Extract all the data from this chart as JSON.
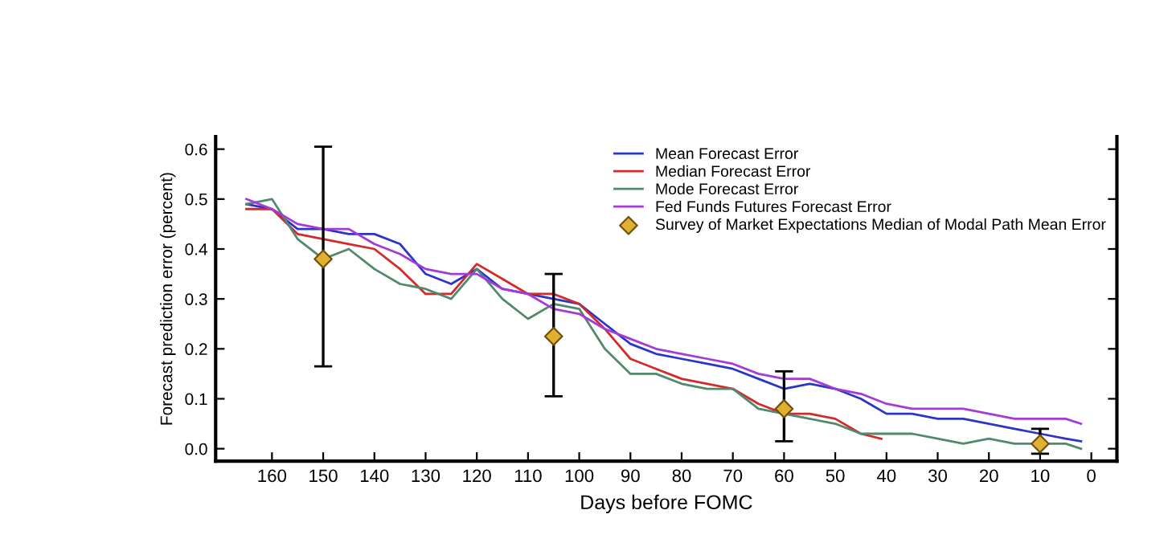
{
  "chart_data": {
    "type": "line",
    "xlabel": "Days before FOMC",
    "ylabel": "Forecast prediction error (percent)",
    "xlim": [
      171,
      -5
    ],
    "xticks": [
      160,
      150,
      140,
      130,
      120,
      110,
      100,
      90,
      80,
      70,
      60,
      50,
      40,
      30,
      20,
      10,
      0
    ],
    "ylim": [
      -0.025,
      0.625
    ],
    "yticks": [
      {
        "value": 0,
        "label": "0.0"
      },
      0.1,
      0.2,
      0.3,
      0.4,
      0.5,
      0.6
    ],
    "legend": "top right",
    "grid": false,
    "line_style": "solid",
    "marker": "none",
    "series": [
      {
        "name": "Mean Forecast Error",
        "color": "#2b35c8",
        "x": [
          165,
          160,
          155,
          150,
          145,
          140,
          135,
          130,
          125,
          120,
          115,
          110,
          105,
          100,
          95,
          90,
          85,
          80,
          75,
          70,
          65,
          60,
          55,
          50,
          45,
          40,
          35,
          30,
          25,
          20,
          15,
          10,
          5,
          2
        ],
        "values": [
          0.49,
          0.48,
          0.44,
          0.44,
          0.43,
          0.43,
          0.41,
          0.35,
          0.33,
          0.36,
          0.32,
          0.31,
          0.3,
          0.29,
          0.25,
          0.21,
          0.19,
          0.18,
          0.17,
          0.16,
          0.14,
          0.12,
          0.13,
          0.12,
          0.1,
          0.07,
          0.07,
          0.06,
          0.06,
          0.05,
          0.04,
          0.03,
          0.02,
          0.015
        ]
      },
      {
        "name": "Median Forecast Error",
        "color": "#d42a2a",
        "x": [
          165,
          160,
          155,
          150,
          145,
          140,
          135,
          130,
          125,
          120,
          115,
          110,
          105,
          100,
          95,
          90,
          85,
          80,
          75,
          70,
          65,
          60,
          55,
          50,
          45,
          41
        ],
        "values": [
          0.48,
          0.48,
          0.43,
          0.42,
          0.41,
          0.4,
          0.36,
          0.31,
          0.31,
          0.37,
          0.34,
          0.31,
          0.31,
          0.29,
          0.24,
          0.18,
          0.16,
          0.14,
          0.13,
          0.12,
          0.09,
          0.07,
          0.07,
          0.06,
          0.03,
          0.02
        ]
      },
      {
        "name": "Mode Forecast Error",
        "color": "#4f8a6c",
        "x": [
          165,
          160,
          155,
          150,
          145,
          140,
          135,
          130,
          125,
          120,
          115,
          110,
          105,
          100,
          95,
          90,
          85,
          80,
          75,
          70,
          65,
          60,
          55,
          50,
          45,
          40,
          35,
          30,
          25,
          20,
          15,
          10,
          5,
          2
        ],
        "values": [
          0.49,
          0.5,
          0.42,
          0.38,
          0.4,
          0.36,
          0.33,
          0.32,
          0.3,
          0.36,
          0.3,
          0.26,
          0.29,
          0.28,
          0.2,
          0.15,
          0.15,
          0.13,
          0.12,
          0.12,
          0.08,
          0.07,
          0.06,
          0.05,
          0.03,
          0.03,
          0.03,
          0.02,
          0.01,
          0.02,
          0.01,
          0.01,
          0.01,
          0.0
        ]
      },
      {
        "name": "Fed Funds Futures Forecast Error",
        "color": "#a63ad6",
        "x": [
          165,
          160,
          155,
          150,
          145,
          140,
          135,
          130,
          125,
          120,
          115,
          110,
          105,
          100,
          95,
          90,
          85,
          80,
          75,
          70,
          65,
          60,
          55,
          50,
          45,
          40,
          35,
          30,
          25,
          20,
          15,
          10,
          5,
          2
        ],
        "values": [
          0.5,
          0.48,
          0.45,
          0.44,
          0.44,
          0.41,
          0.39,
          0.36,
          0.35,
          0.35,
          0.32,
          0.31,
          0.28,
          0.27,
          0.24,
          0.22,
          0.2,
          0.19,
          0.18,
          0.17,
          0.15,
          0.14,
          0.14,
          0.12,
          0.11,
          0.09,
          0.08,
          0.08,
          0.08,
          0.07,
          0.06,
          0.06,
          0.06,
          0.05
        ]
      },
      {
        "name": "Survey of Market Expectations Median of Modal Path Mean Error",
        "type": "scatter",
        "marker": "diamond",
        "color": "#e0b030",
        "x": [
          150,
          105,
          60,
          10
        ],
        "values": [
          0.38,
          0.225,
          0.08,
          0.01
        ],
        "errors": [
          [
            0.165,
            0.605
          ],
          [
            0.105,
            0.35
          ],
          [
            0.015,
            0.155
          ],
          [
            -0.01,
            0.04
          ]
        ]
      }
    ]
  }
}
